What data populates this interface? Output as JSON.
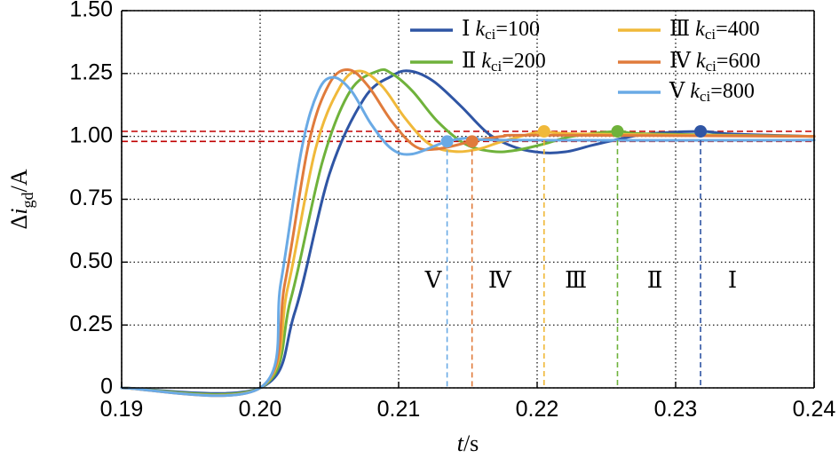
{
  "chart_data": {
    "type": "line",
    "xlabel": {
      "var": "t",
      "unit": "/s"
    },
    "ylabel": {
      "prefix": "Δ",
      "var": "i",
      "sub": "gd",
      "unit": "/A"
    },
    "xlim": [
      0.19,
      0.24
    ],
    "ylim": [
      0,
      1.5
    ],
    "x_ticks": [
      "0.19",
      "0.20",
      "0.21",
      "0.22",
      "0.23",
      "0.24"
    ],
    "x_tick_values": [
      0.19,
      0.2,
      0.21,
      0.22,
      0.23,
      0.24
    ],
    "y_ticks": [
      "0",
      "0.25",
      "0.50",
      "0.75",
      "1.00",
      "1.25",
      "1.50"
    ],
    "y_tick_values": [
      0,
      0.25,
      0.5,
      0.75,
      1.0,
      1.25,
      1.5
    ],
    "grid": true,
    "legend_position": "top-right",
    "step_time": 0.2,
    "tolerance_band": {
      "upper": 1.02,
      "lower": 0.98,
      "color": "#c00000"
    },
    "series": [
      {
        "id": "I",
        "roman": "Ⅰ",
        "k_label": "k",
        "k_sub": "ci",
        "k_value": "=100",
        "color": "#2f55a4",
        "settling_time": 0.2318,
        "settling_value": 1.02,
        "x": [
          0.19,
          0.2,
          0.2025,
          0.205,
          0.2075,
          0.2095,
          0.2108,
          0.2125,
          0.2145,
          0.2165,
          0.2185,
          0.2205,
          0.2222,
          0.224,
          0.226,
          0.228,
          0.2318,
          0.234,
          0.24
        ],
        "y": [
          0,
          0,
          0.3,
          0.85,
          1.15,
          1.24,
          1.26,
          1.22,
          1.12,
          1.01,
          0.955,
          0.935,
          0.94,
          0.965,
          0.99,
          1.01,
          1.02,
          1.01,
          1.0
        ]
      },
      {
        "id": "II",
        "roman": "Ⅱ",
        "k_label": "k",
        "k_sub": "ci",
        "k_value": "=200",
        "color": "#6fb23b",
        "settling_time": 0.2258,
        "settling_value": 1.02,
        "x": [
          0.19,
          0.2,
          0.2022,
          0.2045,
          0.2065,
          0.2085,
          0.2095,
          0.211,
          0.2128,
          0.2148,
          0.2168,
          0.2185,
          0.2205,
          0.2225,
          0.2258,
          0.228,
          0.24
        ],
        "y": [
          0,
          0,
          0.35,
          0.9,
          1.18,
          1.26,
          1.25,
          1.18,
          1.06,
          0.97,
          0.94,
          0.945,
          0.97,
          1.0,
          1.02,
          1.01,
          1.0
        ]
      },
      {
        "id": "III",
        "roman": "Ⅲ",
        "k_label": "k",
        "k_sub": "ci",
        "k_value": "=400",
        "color": "#f0b93a",
        "settling_time": 0.2205,
        "settling_value": 1.02,
        "x": [
          0.19,
          0.2,
          0.202,
          0.204,
          0.2058,
          0.2072,
          0.2088,
          0.2105,
          0.2122,
          0.214,
          0.2158,
          0.2175,
          0.2205,
          0.223,
          0.24
        ],
        "y": [
          0,
          0,
          0.4,
          0.95,
          1.2,
          1.26,
          1.2,
          1.07,
          0.97,
          0.94,
          0.95,
          0.98,
          1.02,
          1.01,
          1.0
        ]
      },
      {
        "id": "IV",
        "roman": "Ⅳ",
        "k_label": "k",
        "k_sub": "ci",
        "k_value": "=600",
        "color": "#e07b3c",
        "settling_time": 0.2153,
        "settling_value": 0.98,
        "x": [
          0.19,
          0.2,
          0.2018,
          0.2035,
          0.205,
          0.2064,
          0.2078,
          0.2095,
          0.2112,
          0.2128,
          0.2153,
          0.2175,
          0.22,
          0.24
        ],
        "y": [
          0,
          0,
          0.42,
          0.97,
          1.21,
          1.265,
          1.2,
          1.06,
          0.96,
          0.95,
          0.98,
          1.0,
          1.005,
          1.0
        ]
      },
      {
        "id": "V",
        "roman": "Ⅴ",
        "k_label": "k",
        "k_sub": "ci",
        "k_value": "=800",
        "color": "#6aaae5",
        "settling_time": 0.2135,
        "settling_value": 0.98,
        "x": [
          0.19,
          0.2,
          0.2015,
          0.203,
          0.2042,
          0.2053,
          0.2066,
          0.208,
          0.2095,
          0.211,
          0.2135,
          0.2155,
          0.218,
          0.24
        ],
        "y": [
          0,
          0,
          0.42,
          0.95,
          1.18,
          1.235,
          1.18,
          1.05,
          0.95,
          0.93,
          0.98,
          0.995,
          0.985,
          0.985
        ]
      }
    ],
    "region_labels": [
      {
        "text": "Ⅴ",
        "x": 0.2125,
        "y": 0.42
      },
      {
        "text": "Ⅳ",
        "x": 0.2173,
        "y": 0.42
      },
      {
        "text": "Ⅲ",
        "x": 0.2228,
        "y": 0.42
      },
      {
        "text": "Ⅱ",
        "x": 0.2285,
        "y": 0.42
      },
      {
        "text": "Ⅰ",
        "x": 0.2341,
        "y": 0.42
      }
    ]
  }
}
